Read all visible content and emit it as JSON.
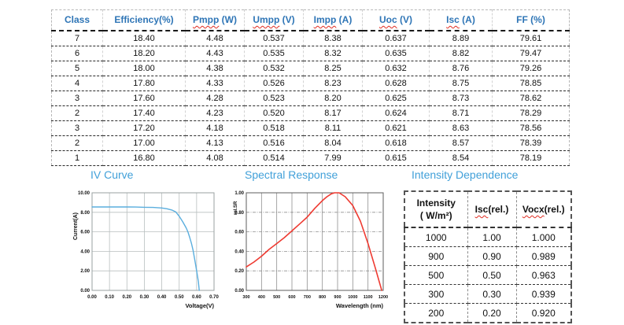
{
  "main_table": {
    "columns": [
      {
        "word": "Class",
        "rest": "",
        "squiggle": false
      },
      {
        "word": "Efficiency(%)",
        "rest": "",
        "squiggle": false
      },
      {
        "word": "Pmpp",
        "rest": " (W)",
        "squiggle": true
      },
      {
        "word": "Umpp",
        "rest": " (V)",
        "squiggle": true
      },
      {
        "word": "Impp",
        "rest": " (A)",
        "squiggle": true
      },
      {
        "word": "Uoc",
        "rest": " (V)",
        "squiggle": true
      },
      {
        "word": "Isc",
        "rest": " (A)",
        "squiggle": true
      },
      {
        "word": "FF",
        "rest": " (%)",
        "squiggle": false
      }
    ],
    "rows": [
      [
        "7",
        "18.40",
        "4.48",
        "0.537",
        "8.38",
        "0.637",
        "8.89",
        "79.61"
      ],
      [
        "6",
        "18.20",
        "4.43",
        "0.535",
        "8.32",
        "0.635",
        "8.82",
        "79.47"
      ],
      [
        "5",
        "18.00",
        "4.38",
        "0.532",
        "8.25",
        "0.632",
        "8.76",
        "79.26"
      ],
      [
        "4",
        "17.80",
        "4.33",
        "0.526",
        "8.23",
        "0.628",
        "8.75",
        "78.85"
      ],
      [
        "3",
        "17.60",
        "4.28",
        "0.523",
        "8.20",
        "0.625",
        "8.73",
        "78.62"
      ],
      [
        "2",
        "17.40",
        "4.23",
        "0.520",
        "8.17",
        "0.624",
        "8.71",
        "78.29"
      ],
      [
        "3",
        "17.20",
        "4.18",
        "0.518",
        "8.11",
        "0.621",
        "8.63",
        "78.56"
      ],
      [
        "2",
        "17.00",
        "4.13",
        "0.516",
        "8.04",
        "0.618",
        "8.57",
        "78.39"
      ],
      [
        "1",
        "16.80",
        "4.08",
        "0.514",
        "7.99",
        "0.615",
        "8.54",
        "78.19"
      ]
    ]
  },
  "intensity_table": {
    "title": "Intensity Dependence",
    "columns": [
      {
        "lines": [
          "Intensity",
          "( W/m²)"
        ],
        "squiggle": false
      },
      {
        "word": "Isc",
        "rest": "(rel.)",
        "squiggle": true
      },
      {
        "word": "Vocx",
        "rest": "(rel.)",
        "squiggle": true
      }
    ],
    "rows": [
      [
        "1000",
        "1.00",
        "1.000"
      ],
      [
        "900",
        "0.90",
        "0.989"
      ],
      [
        "500",
        "0.50",
        "0.963"
      ],
      [
        "300",
        "0.30",
        "0.939"
      ],
      [
        "200",
        "0.20",
        "0.920"
      ]
    ]
  },
  "chart_data": [
    {
      "type": "line",
      "title": "IV Curve",
      "xlabel": "Voltage(V)",
      "ylabel": "Current(A)",
      "xlim": [
        0,
        0.7
      ],
      "ylim": [
        0,
        10
      ],
      "xticks": [
        "0.00",
        "0.10",
        "0.20",
        "0.30",
        "0.40",
        "0.50",
        "0.60",
        "0.70"
      ],
      "yticks": [
        "0.00",
        "2.00",
        "4.00",
        "6.00",
        "8.00",
        "10.00"
      ],
      "grid": "on",
      "legend": "none",
      "color": "#5aaede",
      "points": [
        [
          0.0,
          8.55
        ],
        [
          0.05,
          8.55
        ],
        [
          0.1,
          8.55
        ],
        [
          0.15,
          8.55
        ],
        [
          0.2,
          8.55
        ],
        [
          0.25,
          8.54
        ],
        [
          0.3,
          8.52
        ],
        [
          0.35,
          8.5
        ],
        [
          0.4,
          8.44
        ],
        [
          0.43,
          8.36
        ],
        [
          0.46,
          8.22
        ],
        [
          0.48,
          8.05
        ],
        [
          0.5,
          7.6
        ],
        [
          0.52,
          7.05
        ],
        [
          0.54,
          6.4
        ],
        [
          0.55,
          6.0
        ],
        [
          0.56,
          5.45
        ],
        [
          0.57,
          4.85
        ],
        [
          0.58,
          4.1
        ],
        [
          0.59,
          3.1
        ],
        [
          0.6,
          2.0
        ],
        [
          0.61,
          0.9
        ],
        [
          0.615,
          0.0
        ]
      ]
    },
    {
      "type": "line",
      "title": "Spectral Response",
      "xlabel": "Wavelength (nm)",
      "ylabel": "rel.SR",
      "xlim": [
        300,
        1200
      ],
      "ylim": [
        0,
        1
      ],
      "xticks": [
        "300",
        "400",
        "500",
        "600",
        "700",
        "800",
        "900",
        "1000",
        "1100",
        "1200"
      ],
      "yticks": [
        "0.00",
        "0.20",
        "0.40",
        "0.60",
        "0.80",
        "1.00"
      ],
      "grid": "on",
      "legend": "none",
      "color": "#ee3a31",
      "points": [
        [
          300,
          0.24
        ],
        [
          350,
          0.29
        ],
        [
          400,
          0.35
        ],
        [
          450,
          0.42
        ],
        [
          500,
          0.48
        ],
        [
          550,
          0.54
        ],
        [
          600,
          0.61
        ],
        [
          650,
          0.68
        ],
        [
          700,
          0.75
        ],
        [
          750,
          0.84
        ],
        [
          800,
          0.92
        ],
        [
          830,
          0.96
        ],
        [
          860,
          0.99
        ],
        [
          880,
          1.0
        ],
        [
          910,
          1.0
        ],
        [
          950,
          0.96
        ],
        [
          1000,
          0.87
        ],
        [
          1050,
          0.71
        ],
        [
          1100,
          0.48
        ],
        [
          1150,
          0.22
        ],
        [
          1190,
          0.0
        ]
      ]
    }
  ]
}
